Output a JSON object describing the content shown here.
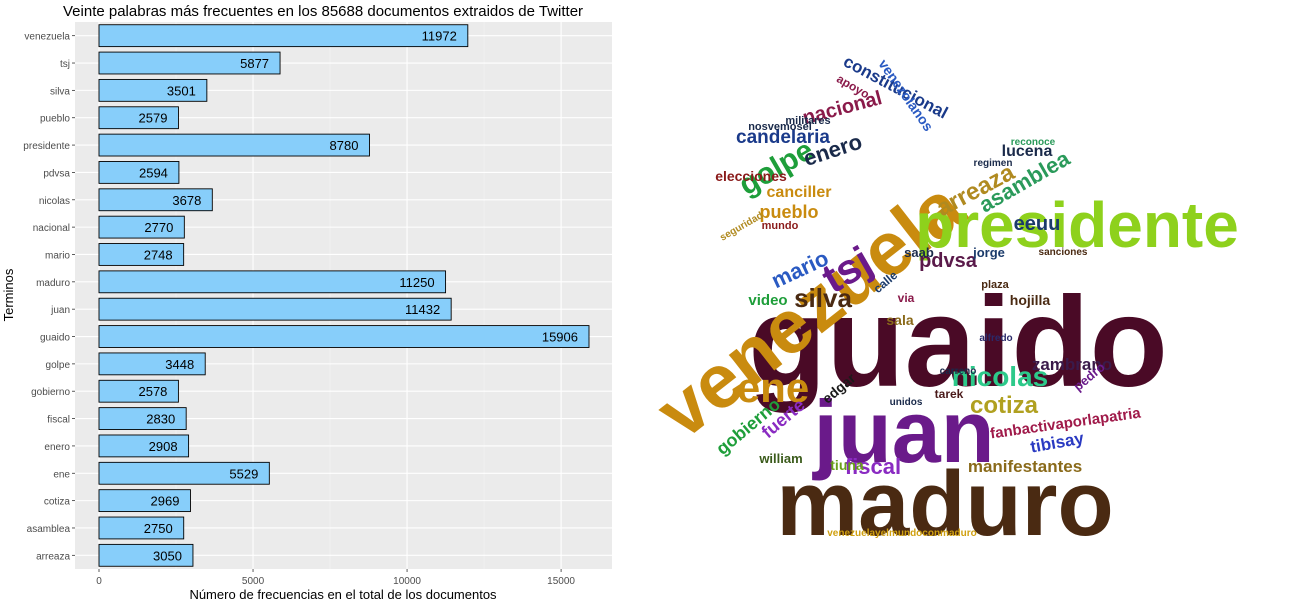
{
  "chart_data": {
    "type": "bar",
    "orientation": "horizontal",
    "title": "Veinte palabras más frecuentes en los 85688 documentos extraidos de Twitter",
    "xlabel": "Número de frecuencias en el total de los documentos",
    "ylabel": "Terminos",
    "xlim": [
      0,
      16500
    ],
    "xticks": [
      0,
      5000,
      10000,
      15000
    ],
    "grid": true,
    "bar_color": "#87CEFA",
    "bar_outline": "#000000",
    "panel_background": "#EBEBEB",
    "categories": [
      "venezuela",
      "tsj",
      "silva",
      "pueblo",
      "presidente",
      "pdvsa",
      "nicolas",
      "nacional",
      "mario",
      "maduro",
      "juan",
      "guaido",
      "golpe",
      "gobierno",
      "fiscal",
      "enero",
      "ene",
      "cotiza",
      "asamblea",
      "arreaza"
    ],
    "values": [
      11972,
      5877,
      3501,
      2579,
      8780,
      2594,
      3678,
      2770,
      2748,
      11250,
      11432,
      15906,
      3448,
      2578,
      2830,
      2908,
      5529,
      2969,
      2750,
      3050
    ],
    "data_labels": true
  },
  "wordcloud": {
    "words": [
      {
        "text": "guaido",
        "color": "#4A0A26"
      },
      {
        "text": "maduro",
        "color": "#4A2A12"
      },
      {
        "text": "juan",
        "color": "#6A1A8A"
      },
      {
        "text": "venezuela",
        "color": "#C98B0F"
      },
      {
        "text": "presidente",
        "color": "#8ED11C"
      },
      {
        "text": "ene",
        "color": "#C98B0F"
      },
      {
        "text": "tsj",
        "color": "#6A1A8A"
      },
      {
        "text": "nicolas",
        "color": "#2DC98A"
      },
      {
        "text": "golpe",
        "color": "#1E9E3A"
      },
      {
        "text": "silva",
        "color": "#4A2A12"
      },
      {
        "text": "cotiza",
        "color": "#B0A020"
      },
      {
        "text": "fiscal",
        "color": "#8A2BC2"
      },
      {
        "text": "enero",
        "color": "#1A2A4A"
      },
      {
        "text": "candelaria",
        "color": "#1A3A8A"
      },
      {
        "text": "nacional",
        "color": "#8A1A4A"
      },
      {
        "text": "arreaza",
        "color": "#B08A20"
      },
      {
        "text": "asamblea",
        "color": "#2A9A5A"
      },
      {
        "text": "mario",
        "color": "#2A5AC2"
      },
      {
        "text": "pdvsa",
        "color": "#5A1A4A"
      },
      {
        "text": "pueblo",
        "color": "#C98B0F"
      },
      {
        "text": "eeuu",
        "color": "#1A3A6A"
      },
      {
        "text": "lucena",
        "color": "#1A2A4A"
      },
      {
        "text": "constitucional",
        "color": "#1A3A8A"
      },
      {
        "text": "venezolanos",
        "color": "#2A5AC2"
      },
      {
        "text": "manifestantes",
        "color": "#8A6A1A"
      },
      {
        "text": "fanbactivaporlapatria",
        "color": "#A01A4A"
      },
      {
        "text": "zambrano",
        "color": "#3A1A4A"
      },
      {
        "text": "gobierno",
        "color": "#1E9E3A"
      },
      {
        "text": "fuerte",
        "color": "#8A2BC2"
      },
      {
        "text": "tibisay",
        "color": "#2A3AC2"
      },
      {
        "text": "edgar",
        "color": "#1A1A1A"
      },
      {
        "text": "tiuna",
        "color": "#6AA01A"
      },
      {
        "text": "william",
        "color": "#3A5A1A"
      },
      {
        "text": "canciller",
        "color": "#C98B0F"
      },
      {
        "text": "elecciones",
        "color": "#8A1A1A"
      },
      {
        "text": "video",
        "color": "#1E9E3A"
      },
      {
        "text": "sala",
        "color": "#8A6A1A"
      },
      {
        "text": "hojilla",
        "color": "#4A2A12"
      },
      {
        "text": "apoyo",
        "color": "#8A1A4A"
      },
      {
        "text": "militares",
        "color": "#1A2A4A"
      },
      {
        "text": "nosvemosel",
        "color": "#1A2A4A"
      },
      {
        "text": "mundo",
        "color": "#8A1A1A"
      },
      {
        "text": "reconoce",
        "color": "#2A9A5A"
      },
      {
        "text": "regimen",
        "color": "#1A2A4A"
      },
      {
        "text": "sanciones",
        "color": "#4A2A12"
      },
      {
        "text": "pedro",
        "color": "#6A1A8A"
      },
      {
        "text": "tarek",
        "color": "#4A1A1A"
      },
      {
        "text": "saab",
        "color": "#1A2A4A"
      },
      {
        "text": "calle",
        "color": "#1A3A6A"
      },
      {
        "text": "via",
        "color": "#8A1A4A"
      },
      {
        "text": "jorge",
        "color": "#1A3A6A"
      },
      {
        "text": "plaza",
        "color": "#4A2A12"
      },
      {
        "text": "alfredo",
        "color": "#2A2A6A"
      },
      {
        "text": "unidos",
        "color": "#1A2A4A"
      },
      {
        "text": "carreno",
        "color": "#1A2A4A"
      },
      {
        "text": "seguridad",
        "color": "#B08A20"
      },
      {
        "text": "venezuelayelmundoconmaduro",
        "color": "#D0A010"
      }
    ]
  }
}
